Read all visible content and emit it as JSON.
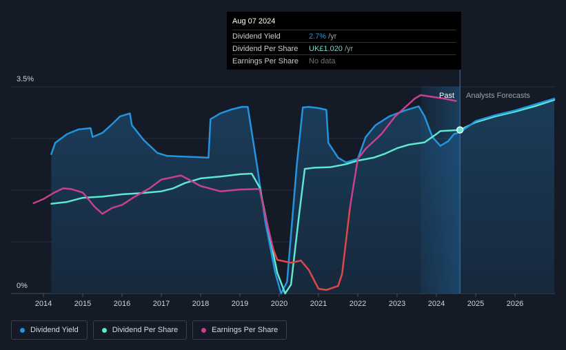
{
  "tooltip": {
    "date": "Aug 07 2024",
    "rows": [
      {
        "label": "Dividend Yield",
        "value": "2.7%",
        "unit": "/yr"
      },
      {
        "label": "Dividend Per Share",
        "value": "UK£1.020",
        "unit": "/yr"
      },
      {
        "label": "Earnings Per Share",
        "value": "No data",
        "unit": ""
      }
    ]
  },
  "regions": {
    "past": "Past",
    "forecast": "Analysts Forecasts"
  },
  "legend": [
    {
      "label": "Dividend Yield",
      "color": "#2394df"
    },
    {
      "label": "Dividend Per Share",
      "color": "#5ee8d0"
    },
    {
      "label": "Earnings Per Share",
      "color": "#c9418c"
    }
  ],
  "chart_data": {
    "type": "line",
    "x_range": [
      2013.75,
      2027.0
    ],
    "y_range": [
      0,
      3.5
    ],
    "y_ticks": [
      {
        "value": 0,
        "label": "0%"
      },
      {
        "value": 3.5,
        "label": "3.5%"
      }
    ],
    "x_ticks": [
      2014,
      2015,
      2016,
      2017,
      2018,
      2019,
      2020,
      2021,
      2022,
      2023,
      2024,
      2025,
      2026
    ],
    "grid": true,
    "past_end": 2024.6,
    "highlight_start": 2023.6,
    "negative_color": "#e04848",
    "series": [
      {
        "name": "Dividend Yield",
        "color": "#2394df",
        "fill": true,
        "points": [
          [
            2014.2,
            2.36
          ],
          [
            2014.3,
            2.55
          ],
          [
            2014.6,
            2.7
          ],
          [
            2014.9,
            2.78
          ],
          [
            2015.2,
            2.8
          ],
          [
            2015.25,
            2.65
          ],
          [
            2015.5,
            2.72
          ],
          [
            2015.75,
            2.87
          ],
          [
            2015.95,
            3.0
          ],
          [
            2016.2,
            3.05
          ],
          [
            2016.25,
            2.85
          ],
          [
            2016.55,
            2.6
          ],
          [
            2016.9,
            2.38
          ],
          [
            2017.15,
            2.33
          ],
          [
            2017.5,
            2.32
          ],
          [
            2017.9,
            2.31
          ],
          [
            2018.2,
            2.3
          ],
          [
            2018.25,
            2.95
          ],
          [
            2018.5,
            3.05
          ],
          [
            2018.8,
            3.12
          ],
          [
            2019.05,
            3.16
          ],
          [
            2019.2,
            3.16
          ],
          [
            2019.45,
            2.1
          ],
          [
            2019.65,
            1.2
          ],
          [
            2019.9,
            0.35
          ],
          [
            2020.05,
            0.0
          ],
          [
            2020.2,
            0.2
          ],
          [
            2020.45,
            2.2
          ],
          [
            2020.6,
            3.15
          ],
          [
            2020.75,
            3.16
          ],
          [
            2021.0,
            3.14
          ],
          [
            2021.2,
            3.11
          ],
          [
            2021.25,
            2.55
          ],
          [
            2021.5,
            2.3
          ],
          [
            2021.7,
            2.22
          ],
          [
            2022.0,
            2.28
          ],
          [
            2022.2,
            2.65
          ],
          [
            2022.45,
            2.85
          ],
          [
            2022.8,
            3.0
          ],
          [
            2023.2,
            3.1
          ],
          [
            2023.55,
            3.17
          ],
          [
            2023.7,
            3.0
          ],
          [
            2023.9,
            2.65
          ],
          [
            2024.1,
            2.5
          ],
          [
            2024.3,
            2.58
          ],
          [
            2024.45,
            2.7
          ],
          [
            2024.6,
            2.73
          ]
        ]
      },
      {
        "name": "Dividend Per Share",
        "color": "#5ee8d0",
        "fill": false,
        "points": [
          [
            2014.2,
            1.52
          ],
          [
            2014.6,
            1.55
          ],
          [
            2015.0,
            1.62
          ],
          [
            2015.5,
            1.64
          ],
          [
            2016.0,
            1.68
          ],
          [
            2016.5,
            1.7
          ],
          [
            2017.0,
            1.73
          ],
          [
            2017.3,
            1.78
          ],
          [
            2017.6,
            1.87
          ],
          [
            2018.0,
            1.95
          ],
          [
            2018.5,
            1.98
          ],
          [
            2019.0,
            2.02
          ],
          [
            2019.3,
            2.03
          ],
          [
            2019.5,
            1.8
          ],
          [
            2019.75,
            1.0
          ],
          [
            2019.95,
            0.35
          ],
          [
            2020.15,
            0.0
          ],
          [
            2020.3,
            0.15
          ],
          [
            2020.5,
            1.3
          ],
          [
            2020.65,
            2.11
          ],
          [
            2020.9,
            2.13
          ],
          [
            2021.3,
            2.14
          ],
          [
            2021.7,
            2.19
          ],
          [
            2022.0,
            2.25
          ],
          [
            2022.4,
            2.3
          ],
          [
            2022.7,
            2.37
          ],
          [
            2023.0,
            2.46
          ],
          [
            2023.3,
            2.52
          ],
          [
            2023.7,
            2.56
          ],
          [
            2024.0,
            2.7
          ],
          [
            2024.1,
            2.75
          ],
          [
            2024.6,
            2.77
          ],
          [
            2025.0,
            2.9
          ],
          [
            2025.5,
            3.0
          ],
          [
            2026.0,
            3.08
          ],
          [
            2026.5,
            3.17
          ],
          [
            2027.0,
            3.28
          ]
        ]
      },
      {
        "name": "Earnings Per Share",
        "color": "#c9418c",
        "fill": false,
        "points": [
          [
            2013.75,
            1.53
          ],
          [
            2014.0,
            1.6
          ],
          [
            2014.25,
            1.7
          ],
          [
            2014.5,
            1.78
          ],
          [
            2014.7,
            1.77
          ],
          [
            2015.0,
            1.71
          ],
          [
            2015.3,
            1.47
          ],
          [
            2015.5,
            1.35
          ],
          [
            2015.75,
            1.45
          ],
          [
            2016.0,
            1.5
          ],
          [
            2016.3,
            1.63
          ],
          [
            2016.7,
            1.78
          ],
          [
            2017.0,
            1.93
          ],
          [
            2017.3,
            1.97
          ],
          [
            2017.5,
            2.0
          ],
          [
            2017.7,
            1.93
          ],
          [
            2018.0,
            1.82
          ],
          [
            2018.5,
            1.73
          ],
          [
            2019.0,
            1.76
          ],
          [
            2019.5,
            1.77
          ],
          [
            2019.65,
            1.3
          ],
          [
            2019.85,
            0.75
          ],
          [
            2019.95,
            0.57
          ],
          [
            2020.3,
            0.52
          ],
          [
            2020.5,
            0.55
          ],
          [
            2020.55,
            0.56
          ],
          [
            2020.75,
            0.4
          ],
          [
            2021.0,
            0.08
          ],
          [
            2021.2,
            0.06
          ],
          [
            2021.5,
            0.13
          ],
          [
            2021.6,
            0.33
          ],
          [
            2021.8,
            1.45
          ],
          [
            2022.0,
            2.28
          ],
          [
            2022.2,
            2.45
          ],
          [
            2022.6,
            2.7
          ],
          [
            2022.95,
            3.0
          ],
          [
            2023.2,
            3.15
          ],
          [
            2023.45,
            3.3
          ],
          [
            2023.6,
            3.36
          ],
          [
            2023.9,
            3.33
          ],
          [
            2024.2,
            3.3
          ],
          [
            2024.5,
            3.26
          ]
        ]
      },
      {
        "name": "Dividend Yield Forecast",
        "color": "#2394df",
        "fill": true,
        "points": [
          [
            2024.6,
            2.73
          ],
          [
            2025.0,
            2.92
          ],
          [
            2025.5,
            3.02
          ],
          [
            2026.0,
            3.1
          ],
          [
            2026.5,
            3.2
          ],
          [
            2027.0,
            3.3
          ]
        ]
      }
    ]
  }
}
